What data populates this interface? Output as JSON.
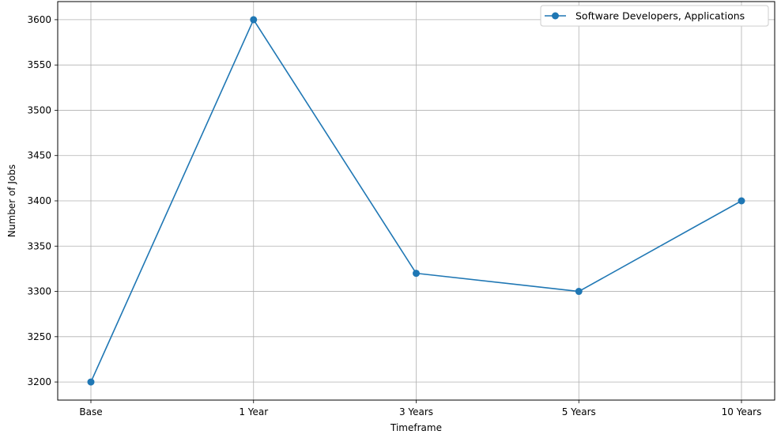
{
  "chart_data": {
    "type": "line",
    "categories": [
      "Base",
      "1 Year",
      "3 Years",
      "5 Years",
      "10 Years"
    ],
    "series": [
      {
        "name": "Software Developers, Applications",
        "values": [
          3200,
          3600,
          3320,
          3300,
          3400
        ],
        "color": "#1f77b4"
      }
    ],
    "xlabel": "Timeframe",
    "ylabel": "Number of Jobs",
    "ylim": [
      3180,
      3620
    ],
    "yticks": [
      3200,
      3250,
      3300,
      3350,
      3400,
      3450,
      3500,
      3550,
      3600
    ],
    "grid": true,
    "legend_position": "top-right"
  }
}
